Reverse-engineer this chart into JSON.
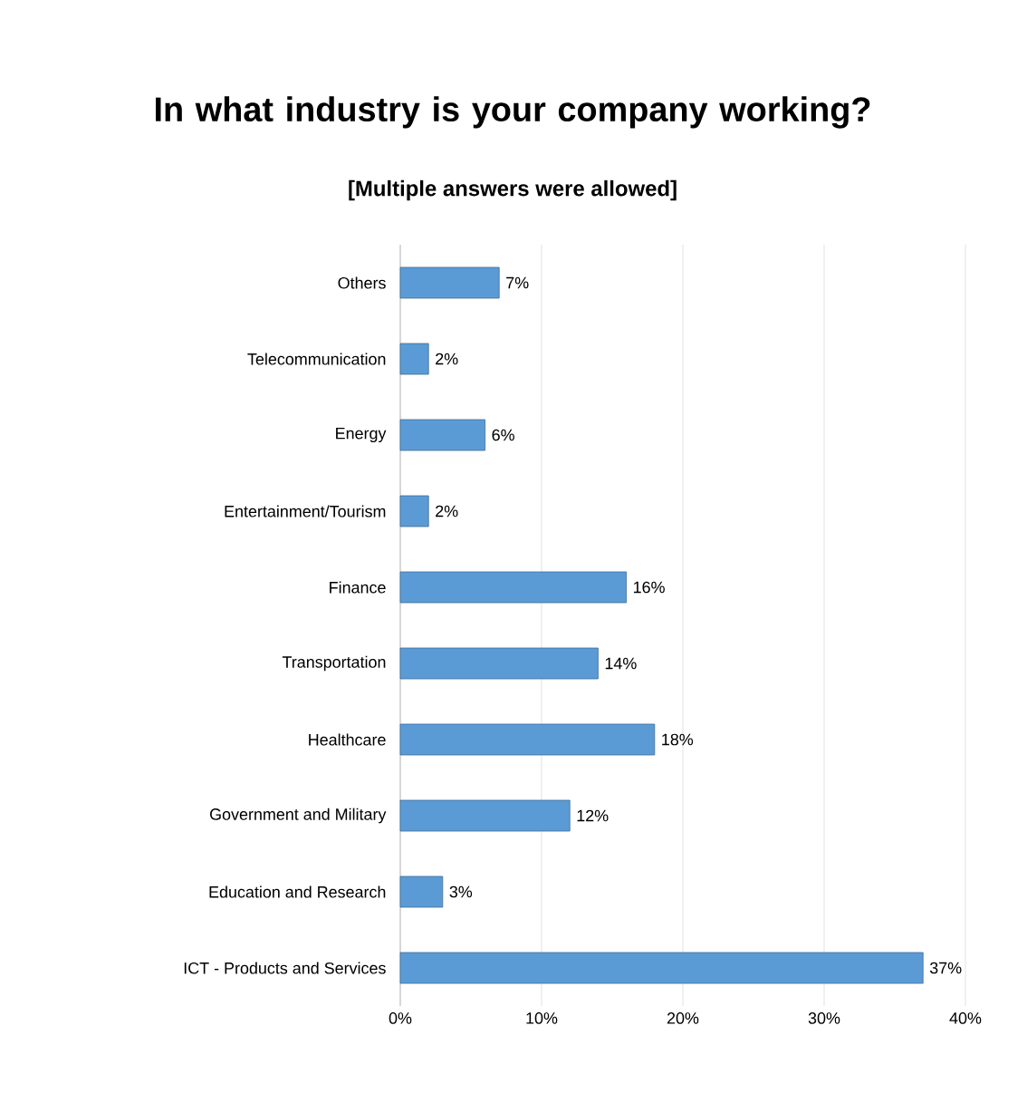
{
  "chart_data": {
    "type": "bar",
    "orientation": "horizontal",
    "title": "In what industry is your company working?",
    "subtitle": "[Multiple answers were allowed]",
    "categories": [
      "Others",
      "Telecommunication",
      "Energy",
      "Entertainment/Tourism",
      "Finance",
      "Transportation",
      "Healthcare",
      "Government and Military",
      "Education and Research",
      "ICT - Products and Services"
    ],
    "values": [
      7,
      2,
      6,
      2,
      16,
      14,
      18,
      12,
      3,
      37
    ],
    "value_labels": [
      "7%",
      "2%",
      "6%",
      "2%",
      "16%",
      "14%",
      "18%",
      "12%",
      "3%",
      "37%"
    ],
    "color": "#5b9bd5",
    "xlim": [
      0,
      40
    ],
    "xticks": [
      {
        "value": 0,
        "label": "0%"
      },
      {
        "value": 10,
        "label": "10%"
      },
      {
        "value": 20,
        "label": "20%"
      },
      {
        "value": 30,
        "label": "30%"
      },
      {
        "value": 40,
        "label": "40%"
      }
    ],
    "grid": "x"
  }
}
